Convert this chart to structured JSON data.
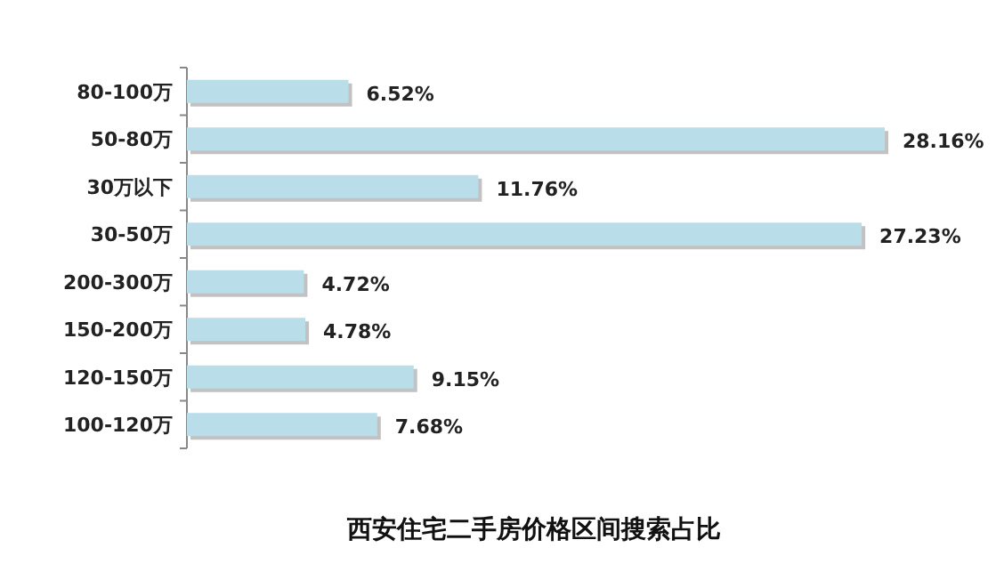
{
  "chart_data": {
    "type": "bar",
    "orientation": "horizontal",
    "title": "西安住宅二手房价格区间搜索占比",
    "categories": [
      "80-100万",
      "50-80万",
      "30万以下",
      "30-50万",
      "200-300万",
      "150-200万",
      "120-150万",
      "100-120万"
    ],
    "values": [
      6.52,
      28.16,
      11.76,
      27.23,
      4.72,
      4.78,
      9.15,
      7.68
    ],
    "value_labels": [
      "6.52%",
      "28.16%",
      "11.76%",
      "27.23%",
      "4.72%",
      "4.78%",
      "9.15%",
      "7.68%"
    ],
    "color": "#b9dde9",
    "grid": false
  }
}
